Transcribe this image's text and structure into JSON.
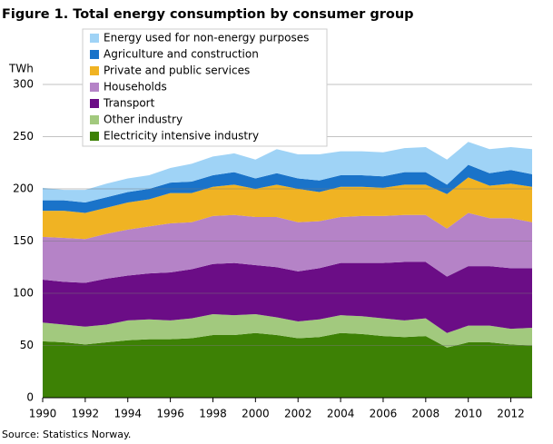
{
  "chart_data": {
    "type": "area",
    "stacked": true,
    "title": "Figure 1. Total energy consumption by consumer group",
    "ylabel": "TWh",
    "source": "Source: Statistics Norway.",
    "x": [
      1990,
      1991,
      1992,
      1993,
      1994,
      1995,
      1996,
      1997,
      1998,
      1999,
      2000,
      2001,
      2002,
      2003,
      2004,
      2005,
      2006,
      2007,
      2008,
      2009,
      2010,
      2011,
      2012,
      2013
    ],
    "xlim": [
      1990,
      2013
    ],
    "xticks": [
      1990,
      1992,
      1994,
      1996,
      1998,
      2000,
      2002,
      2004,
      2006,
      2008,
      2010,
      2012
    ],
    "ylim": [
      0,
      300
    ],
    "yticks": [
      0,
      50,
      100,
      150,
      200,
      250,
      300
    ],
    "grid": true,
    "series": [
      {
        "name": "Electricity intensive industry",
        "color": "#3d8105",
        "values": [
          54,
          53,
          51,
          53,
          55,
          56,
          56,
          57,
          60,
          60,
          62,
          60,
          57,
          58,
          62,
          61,
          59,
          58,
          59,
          48,
          53,
          53,
          51,
          50
        ]
      },
      {
        "name": "Other industry",
        "color": "#a2c97e",
        "values": [
          18,
          17,
          17,
          17,
          19,
          19,
          18,
          19,
          20,
          19,
          18,
          17,
          16,
          17,
          17,
          17,
          17,
          16,
          17,
          14,
          16,
          16,
          15,
          17
        ]
      },
      {
        "name": "Transport",
        "color": "#6b0d86",
        "values": [
          41,
          41,
          42,
          44,
          43,
          44,
          46,
          47,
          48,
          50,
          47,
          48,
          48,
          49,
          50,
          51,
          53,
          56,
          54,
          54,
          57,
          57,
          58,
          57
        ]
      },
      {
        "name": "Households",
        "color": "#b583c7",
        "values": [
          41,
          42,
          42,
          43,
          44,
          45,
          47,
          45,
          46,
          46,
          46,
          48,
          47,
          45,
          44,
          45,
          45,
          45,
          45,
          46,
          51,
          46,
          48,
          44
        ]
      },
      {
        "name": "Private and public services",
        "color": "#f0b323",
        "values": [
          25,
          26,
          25,
          25,
          26,
          26,
          29,
          28,
          28,
          29,
          27,
          31,
          32,
          28,
          29,
          28,
          27,
          29,
          29,
          33,
          34,
          31,
          33,
          34
        ]
      },
      {
        "name": "Agriculture and construction",
        "color": "#1a73c9",
        "values": [
          10,
          10,
          10,
          10,
          10,
          10,
          10,
          11,
          11,
          12,
          10,
          11,
          10,
          11,
          11,
          11,
          11,
          12,
          12,
          9,
          12,
          12,
          13,
          12
        ]
      },
      {
        "name": "Energy used for non-energy purposes",
        "color": "#9fd3f6",
        "values": [
          12,
          10,
          12,
          13,
          13,
          13,
          14,
          17,
          18,
          18,
          18,
          23,
          23,
          25,
          23,
          23,
          23,
          23,
          24,
          24,
          22,
          23,
          22,
          24
        ]
      }
    ]
  }
}
